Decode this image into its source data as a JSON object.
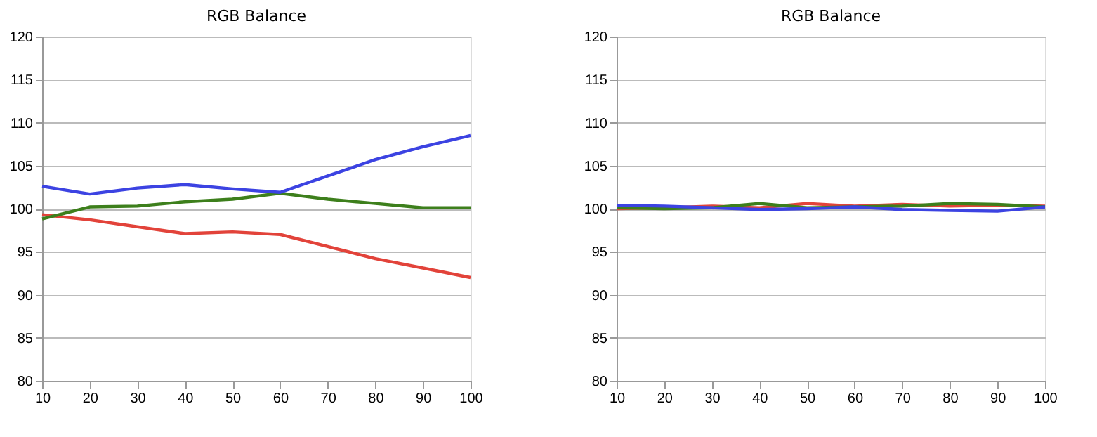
{
  "chart_data": [
    {
      "type": "line",
      "title": "RGB Balance",
      "x": [
        10,
        20,
        30,
        40,
        50,
        60,
        70,
        80,
        90,
        100
      ],
      "xlim": [
        10,
        100
      ],
      "ylim": [
        80,
        120
      ],
      "xticks": [
        10,
        20,
        30,
        40,
        50,
        60,
        70,
        80,
        90,
        100
      ],
      "yticks": [
        80,
        85,
        90,
        95,
        100,
        105,
        110,
        115,
        120
      ],
      "grid": "y",
      "series": [
        {
          "color": "#e2433a",
          "values": [
            99.3,
            98.7,
            97.9,
            97.1,
            97.3,
            97.0,
            95.6,
            94.2,
            93.1,
            92.0
          ]
        },
        {
          "color": "#3d7f1c",
          "values": [
            98.8,
            100.2,
            100.3,
            100.8,
            101.1,
            101.8,
            101.1,
            100.6,
            100.1,
            100.1
          ]
        },
        {
          "color": "#3c43e2",
          "values": [
            102.6,
            101.7,
            102.4,
            102.8,
            102.3,
            101.9,
            103.8,
            105.7,
            107.2,
            108.5
          ]
        }
      ]
    },
    {
      "type": "line",
      "title": "RGB Balance",
      "x": [
        10,
        20,
        30,
        40,
        50,
        60,
        70,
        80,
        90,
        100
      ],
      "xlim": [
        10,
        100
      ],
      "ylim": [
        80,
        120
      ],
      "xticks": [
        10,
        20,
        30,
        40,
        50,
        60,
        70,
        80,
        90,
        100
      ],
      "yticks": [
        80,
        85,
        90,
        95,
        100,
        105,
        110,
        115,
        120
      ],
      "grid": "y",
      "series": [
        {
          "color": "#e2433a",
          "values": [
            100.0,
            100.1,
            100.3,
            100.1,
            100.6,
            100.3,
            100.5,
            100.3,
            100.4,
            100.3
          ]
        },
        {
          "color": "#3d7f1c",
          "values": [
            100.1,
            100.0,
            100.1,
            100.6,
            100.1,
            100.2,
            100.3,
            100.6,
            100.5,
            100.2
          ]
        },
        {
          "color": "#3c43e2",
          "values": [
            100.4,
            100.3,
            100.1,
            99.9,
            100.0,
            100.2,
            99.9,
            99.8,
            99.7,
            100.2
          ]
        }
      ]
    }
  ]
}
